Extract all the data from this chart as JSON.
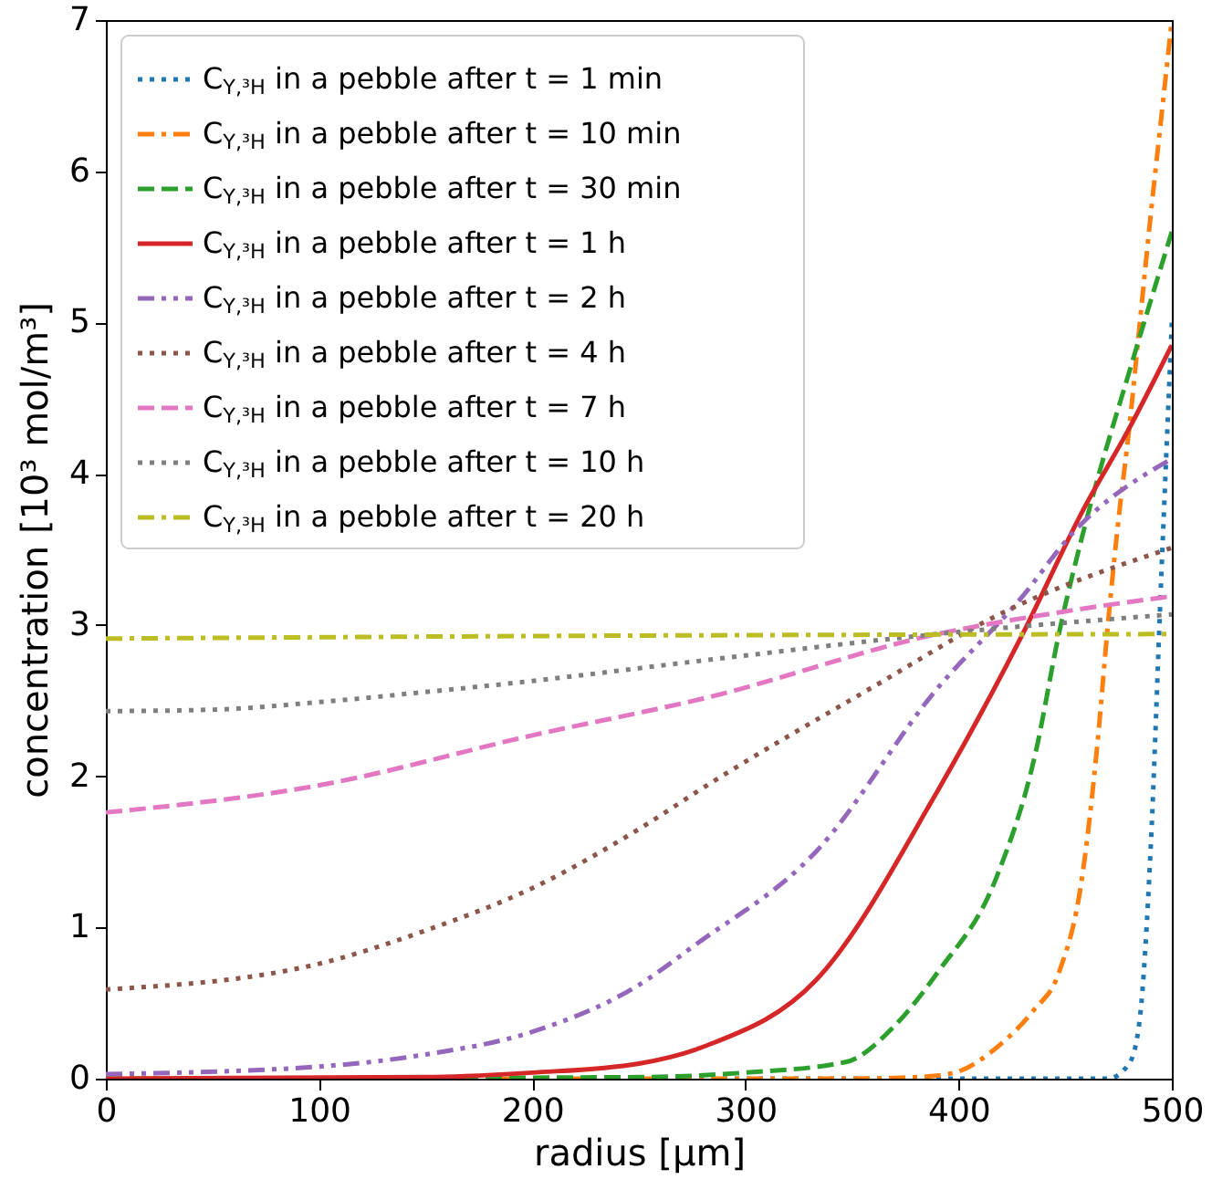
{
  "chart_data": {
    "type": "line",
    "xlabel": "radius [μm]",
    "ylabel": "concentration [10³ mol/m³]",
    "xlim": [
      0,
      500
    ],
    "ylim": [
      0,
      7
    ],
    "xticks": [
      0,
      100,
      200,
      300,
      400,
      500
    ],
    "yticks": [
      0,
      1,
      2,
      3,
      4,
      5,
      6,
      7
    ],
    "grid": false,
    "legend": "top left",
    "marker": "none",
    "series": [
      {
        "name": "C$_{Y,³H}$ in a pebble after t = 1 min",
        "color": "#1f77b4",
        "line_style": "dotted",
        "x": [
          0,
          450,
          470,
          480,
          485,
          490,
          495,
          500
        ],
        "values": [
          0,
          0,
          0,
          0.1,
          0.4,
          1.5,
          3.3,
          5.0
        ]
      },
      {
        "name": "C$_{Y,³H}$ in a pebble after t = 10 min",
        "color": "#ff7f0e",
        "line_style": "dashdot",
        "x": [
          0,
          350,
          380,
          398,
          419,
          435,
          447,
          458,
          465,
          470,
          475,
          480,
          485,
          490,
          495,
          500
        ],
        "values": [
          0,
          0,
          0.01,
          0.04,
          0.22,
          0.45,
          0.7,
          1.34,
          2.2,
          3.0,
          3.7,
          4.3,
          5.0,
          5.7,
          6.35,
          7.0
        ]
      },
      {
        "name": "C$_{Y,³H}$ in a pebble after t = 30 min",
        "color": "#2ca02c",
        "line_style": "dashed",
        "x": [
          0,
          250,
          300,
          347,
          370,
          390,
          418,
          436,
          447,
          461,
          481,
          500
        ],
        "values": [
          0,
          0.01,
          0.04,
          0.11,
          0.35,
          0.7,
          1.34,
          2.15,
          2.94,
          3.75,
          4.72,
          5.6
        ]
      },
      {
        "name": "C$_{Y,³H}$ in a pebble after t = 1 h",
        "color": "#d62728",
        "line_style": "solid",
        "x": [
          0,
          150,
          200,
          250,
          282,
          333,
          390,
          430,
          458,
          480,
          500
        ],
        "values": [
          0,
          0.01,
          0.04,
          0.1,
          0.22,
          0.65,
          1.9,
          2.94,
          3.75,
          4.3,
          4.85
        ]
      },
      {
        "name": "C$_{Y,³H}$ in a pebble after t = 2 h",
        "color": "#9467bd",
        "line_style": "dashdotdot",
        "x": [
          0,
          100,
          150,
          200,
          250,
          276,
          333,
          390,
          430,
          453,
          500
        ],
        "values": [
          0.03,
          0.08,
          0.16,
          0.31,
          0.62,
          0.88,
          1.5,
          2.58,
          3.19,
          3.6,
          4.1
        ]
      },
      {
        "name": "C$_{Y,³H}$ in a pebble after t = 4 h",
        "color": "#8c564b",
        "line_style": "dotted",
        "x": [
          0,
          100,
          150,
          200,
          250,
          282,
          361,
          419,
          500
        ],
        "values": [
          0.59,
          0.76,
          0.98,
          1.26,
          1.65,
          1.94,
          2.6,
          3.07,
          3.51
        ]
      },
      {
        "name": "C$_{Y,³H}$ in a pebble after t = 7 h",
        "color": "#e377c2",
        "line_style": "dashed",
        "x": [
          0,
          100,
          200,
          282,
          390,
          450,
          500
        ],
        "values": [
          1.76,
          1.94,
          2.27,
          2.52,
          2.94,
          3.09,
          3.19
        ]
      },
      {
        "name": "C$_{Y,³H}$ in a pebble after t = 10 h",
        "color": "#7f7f7f",
        "line_style": "dotted",
        "x": [
          0,
          50,
          100,
          145,
          200,
          277,
          390,
          500
        ],
        "values": [
          2.43,
          2.44,
          2.49,
          2.55,
          2.63,
          2.76,
          2.94,
          3.07
        ]
      },
      {
        "name": "C$_{Y,³H}$ in a pebble after t = 20 h",
        "color": "#bcbd22",
        "line_style": "dashdot",
        "x": [
          0,
          250,
          500
        ],
        "values": [
          2.91,
          2.93,
          2.94
        ]
      }
    ]
  }
}
